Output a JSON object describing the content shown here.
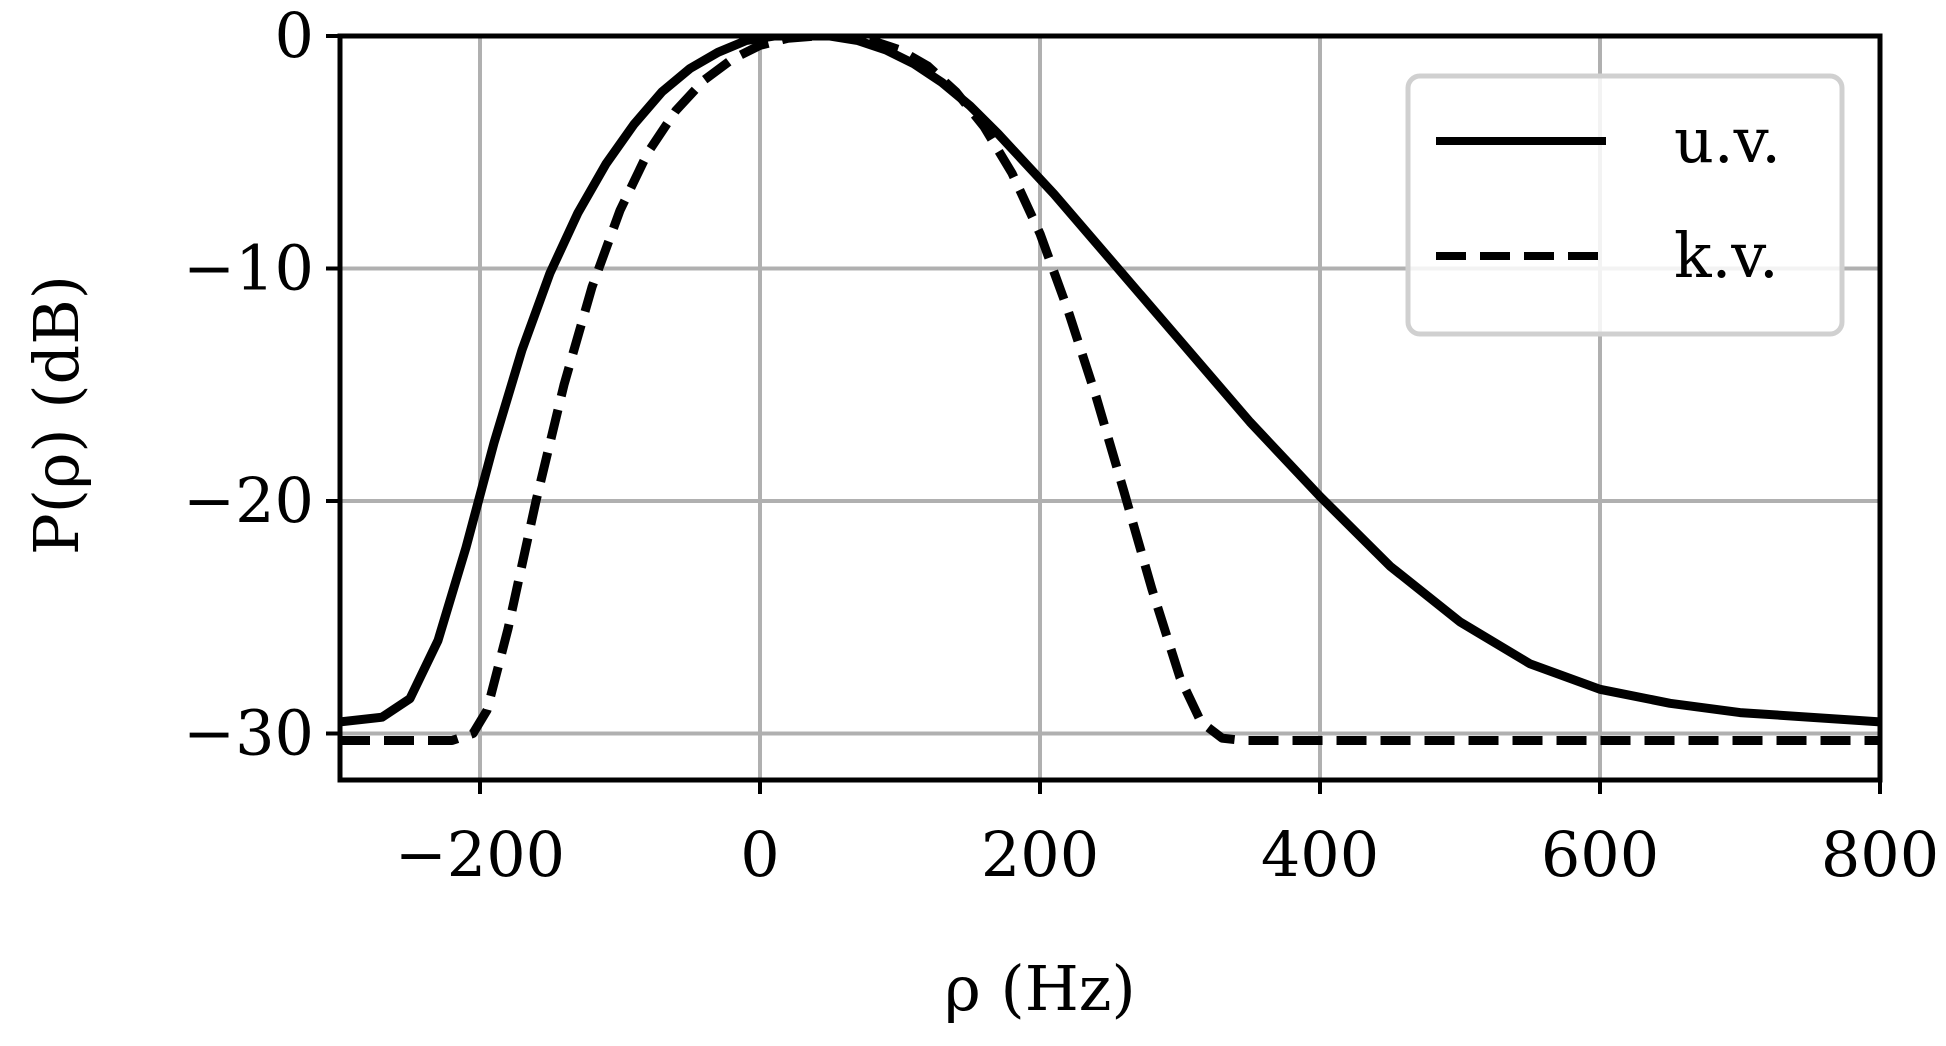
{
  "chart_data": {
    "type": "line",
    "xlabel": "ρ (Hz)",
    "ylabel": "P(ρ) (dB)",
    "xlim": [
      -300,
      800
    ],
    "ylim": [
      -32,
      0
    ],
    "xticks": [
      -200,
      0,
      200,
      400,
      600,
      800
    ],
    "yticks": [
      0,
      -10,
      -20,
      -30
    ],
    "xtick_labels": [
      "−200",
      "0",
      "200",
      "400",
      "600",
      "800"
    ],
    "ytick_labels": [
      "0",
      "−10",
      "−20",
      "−30"
    ],
    "grid": true,
    "legend_position": "top-right",
    "series": [
      {
        "name": "u.v.",
        "style": "solid",
        "color": "#000000",
        "x": [
          -300,
          -270,
          -250,
          -230,
          -210,
          -190,
          -170,
          -150,
          -130,
          -110,
          -90,
          -70,
          -50,
          -30,
          -10,
          10,
          30,
          50,
          70,
          90,
          110,
          130,
          150,
          170,
          190,
          210,
          250,
          300,
          350,
          400,
          450,
          500,
          550,
          600,
          650,
          700,
          750,
          800
        ],
        "y": [
          -29.5,
          -29.3,
          -28.5,
          -26.0,
          -22.0,
          -17.5,
          -13.5,
          -10.2,
          -7.6,
          -5.5,
          -3.8,
          -2.4,
          -1.4,
          -0.7,
          -0.2,
          0,
          0,
          0,
          -0.2,
          -0.6,
          -1.2,
          -2.0,
          -3.0,
          -4.2,
          -5.5,
          -6.8,
          -9.6,
          -13.1,
          -16.6,
          -19.8,
          -22.8,
          -25.2,
          -27.0,
          -28.1,
          -28.7,
          -29.1,
          -29.3,
          -29.5
        ]
      },
      {
        "name": "k.v.",
        "style": "dashed",
        "color": "#000000",
        "x": [
          -300,
          -220,
          -205,
          -195,
          -180,
          -160,
          -140,
          -120,
          -100,
          -80,
          -60,
          -40,
          -20,
          0,
          20,
          40,
          60,
          80,
          100,
          120,
          140,
          160,
          180,
          200,
          220,
          240,
          260,
          280,
          300,
          315,
          330,
          345,
          360,
          400,
          500,
          600,
          700,
          800
        ],
        "y": [
          -30.3,
          -30.3,
          -30.0,
          -29.0,
          -25.5,
          -20.0,
          -15.0,
          -10.8,
          -7.5,
          -5.0,
          -3.2,
          -1.9,
          -1.0,
          -0.4,
          -0.1,
          0,
          0,
          -0.2,
          -0.6,
          -1.3,
          -2.4,
          -3.9,
          -5.9,
          -8.5,
          -11.8,
          -15.5,
          -19.6,
          -23.8,
          -27.6,
          -29.5,
          -30.2,
          -30.3,
          -30.3,
          -30.3,
          -30.3,
          -30.3,
          -30.3,
          -30.3
        ]
      }
    ]
  }
}
